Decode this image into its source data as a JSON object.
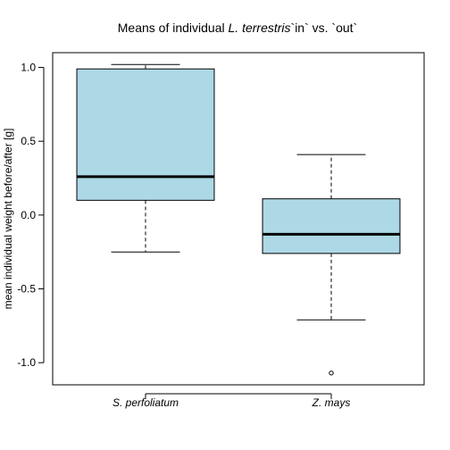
{
  "chart_data": {
    "type": "boxplot",
    "title": {
      "prefix": "Means of individual ",
      "italic": "L. terrestris",
      "suffix": "`in` vs. `out`"
    },
    "xlabel": "",
    "ylabel": "mean individual weight before/after [g]",
    "ylim": [
      -1.15,
      1.1
    ],
    "yticks": [
      1.0,
      0.5,
      0.0,
      -0.5,
      -1.0
    ],
    "ytick_labels": [
      "1.0",
      "0.5",
      "0.0",
      "-0.5",
      "-1.0"
    ],
    "categories": [
      "S. perfoliatum",
      "Z. mays"
    ],
    "boxes": [
      {
        "whisker_low": -0.25,
        "q1": 0.1,
        "median": 0.26,
        "q3": 0.99,
        "whisker_high": 1.02,
        "outliers": []
      },
      {
        "whisker_low": -0.71,
        "q1": -0.26,
        "median": -0.13,
        "q3": 0.11,
        "whisker_high": 0.41,
        "outliers": [
          -1.07
        ]
      }
    ],
    "box_fill": "#add8e6",
    "grid": false,
    "legend": "none"
  }
}
